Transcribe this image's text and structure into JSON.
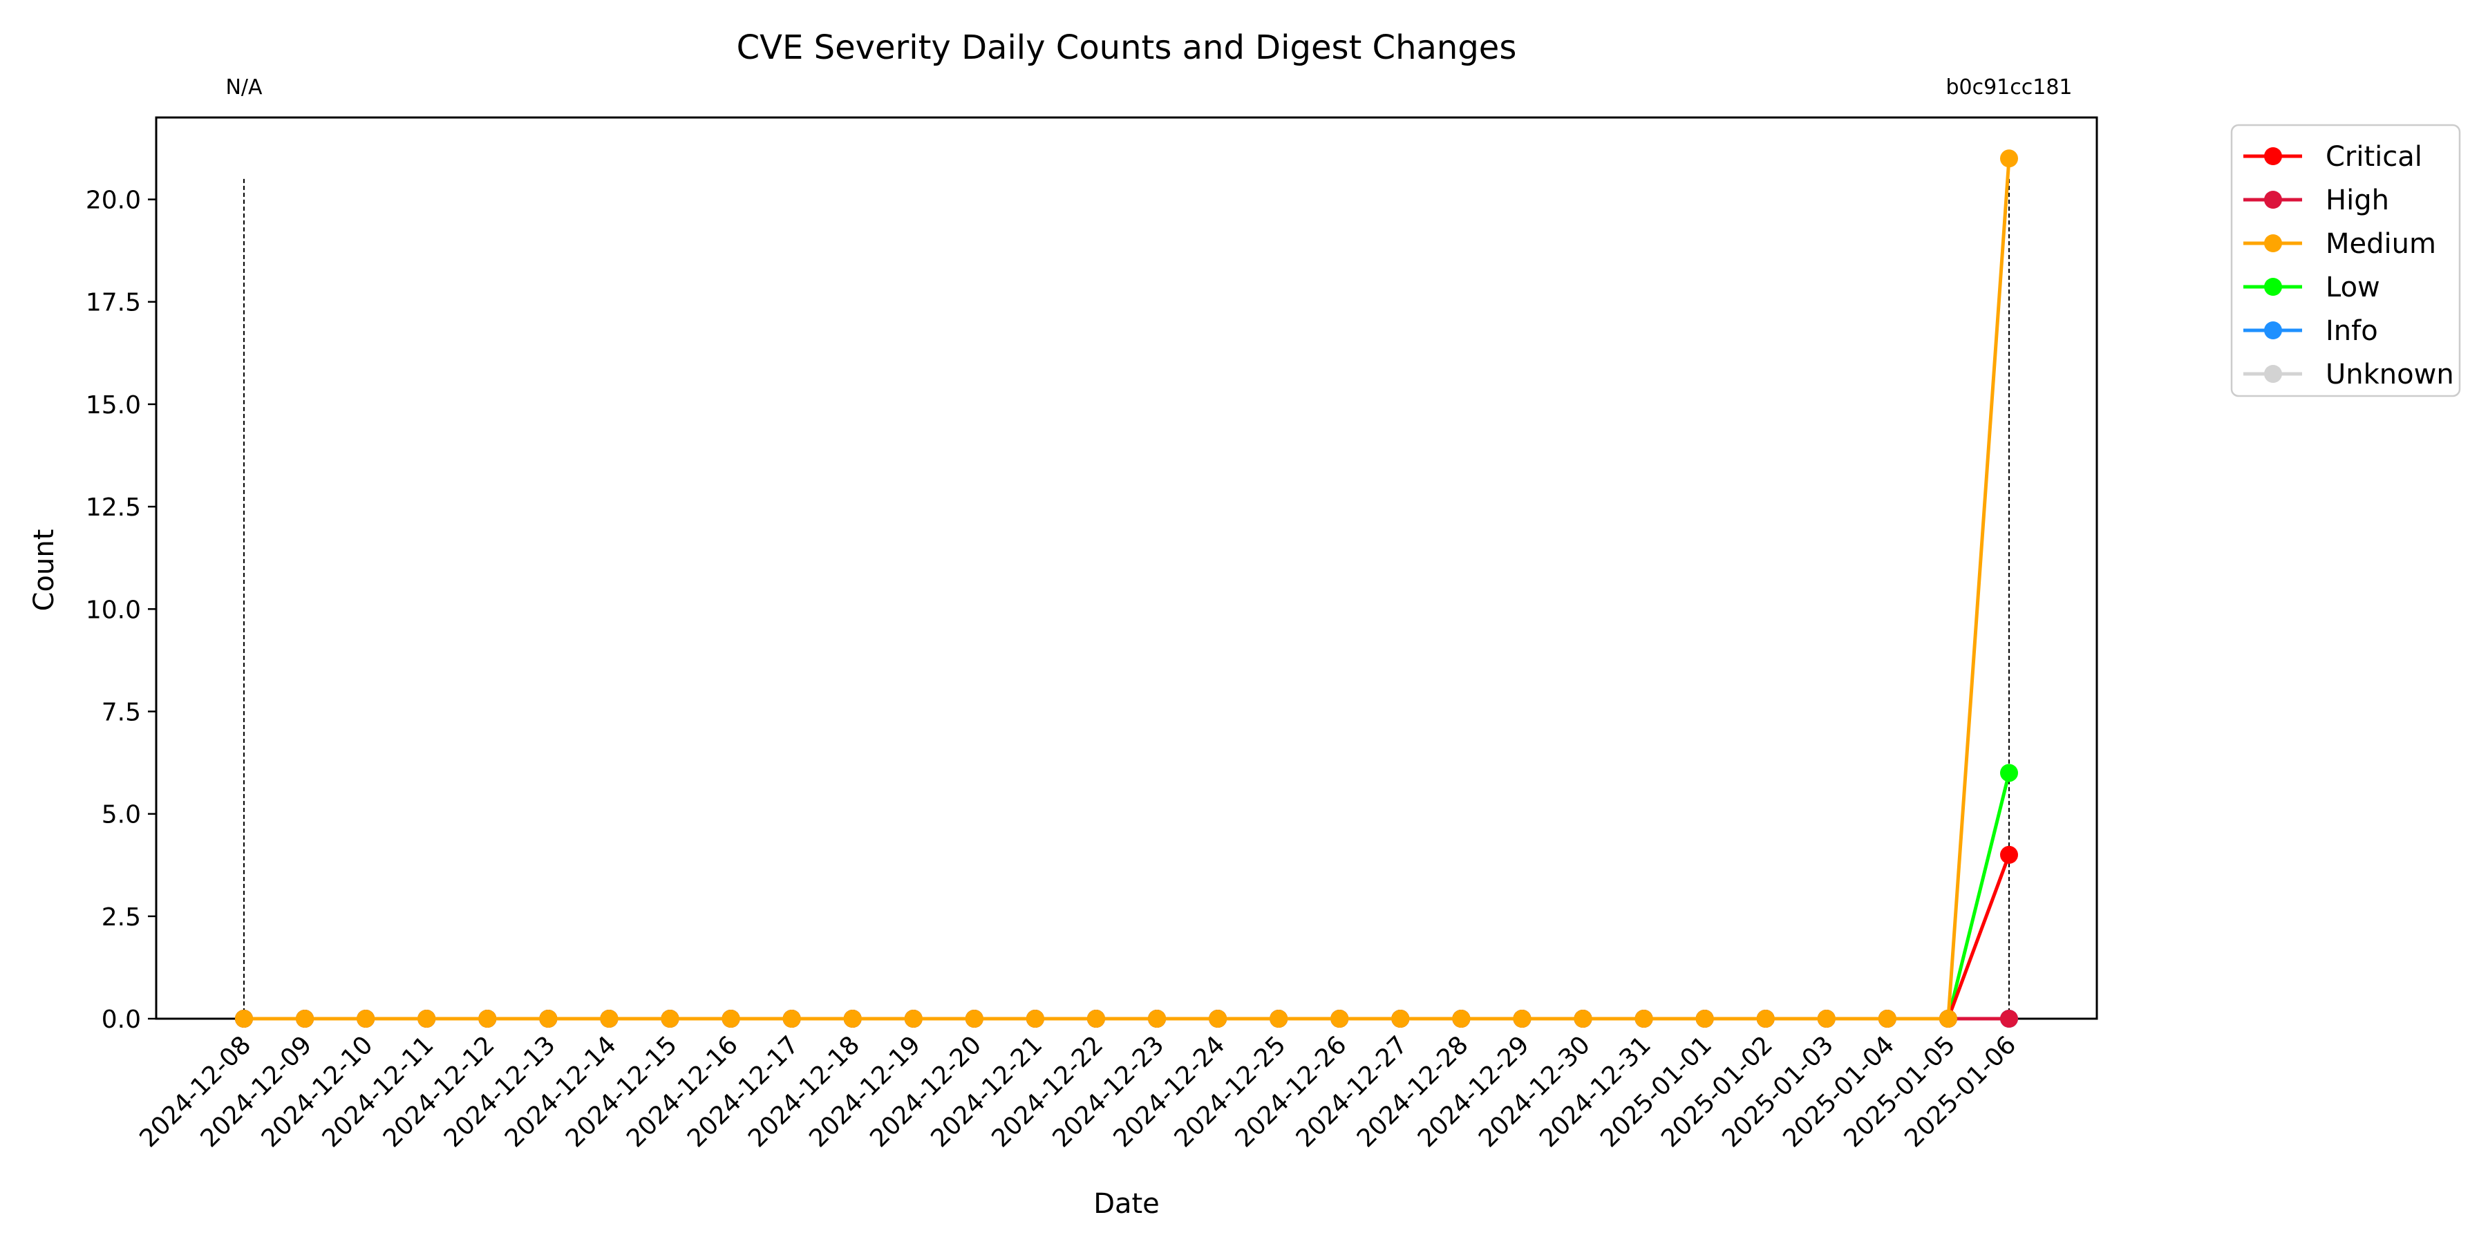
{
  "chart_data": {
    "type": "line",
    "title": "CVE Severity Daily Counts and Digest Changes",
    "xlabel": "Date",
    "ylabel": "Count",
    "x": [
      "2024-12-08",
      "2024-12-09",
      "2024-12-10",
      "2024-12-11",
      "2024-12-12",
      "2024-12-13",
      "2024-12-14",
      "2024-12-15",
      "2024-12-16",
      "2024-12-17",
      "2024-12-18",
      "2024-12-19",
      "2024-12-20",
      "2024-12-21",
      "2024-12-22",
      "2024-12-23",
      "2024-12-24",
      "2024-12-25",
      "2024-12-26",
      "2024-12-27",
      "2024-12-28",
      "2024-12-29",
      "2024-12-30",
      "2024-12-31",
      "2025-01-01",
      "2025-01-02",
      "2025-01-03",
      "2025-01-04",
      "2025-01-05",
      "2025-01-06"
    ],
    "ylim": [
      0,
      22
    ],
    "yticks": [
      "0.0",
      "2.5",
      "5.0",
      "7.5",
      "10.0",
      "12.5",
      "15.0",
      "17.5",
      "20.0"
    ],
    "grid": false,
    "legend_position": "outside-top-right",
    "series": [
      {
        "name": "Critical",
        "color": "#ff0000",
        "values": [
          0,
          0,
          0,
          0,
          0,
          0,
          0,
          0,
          0,
          0,
          0,
          0,
          0,
          0,
          0,
          0,
          0,
          0,
          0,
          0,
          0,
          0,
          0,
          0,
          0,
          0,
          0,
          0,
          0,
          4
        ]
      },
      {
        "name": "High",
        "color": "#dc143c",
        "values": [
          0,
          0,
          0,
          0,
          0,
          0,
          0,
          0,
          0,
          0,
          0,
          0,
          0,
          0,
          0,
          0,
          0,
          0,
          0,
          0,
          0,
          0,
          0,
          0,
          0,
          0,
          0,
          0,
          0,
          0
        ]
      },
      {
        "name": "Medium",
        "color": "#ffa500",
        "values": [
          0,
          0,
          0,
          0,
          0,
          0,
          0,
          0,
          0,
          0,
          0,
          0,
          0,
          0,
          0,
          0,
          0,
          0,
          0,
          0,
          0,
          0,
          0,
          0,
          0,
          0,
          0,
          0,
          0,
          21
        ]
      },
      {
        "name": "Low",
        "color": "#00ff00",
        "values": [
          0,
          0,
          0,
          0,
          0,
          0,
          0,
          0,
          0,
          0,
          0,
          0,
          0,
          0,
          0,
          0,
          0,
          0,
          0,
          0,
          0,
          0,
          0,
          0,
          0,
          0,
          0,
          0,
          0,
          6
        ]
      },
      {
        "name": "Info",
        "color": "#1e90ff",
        "values": [
          0,
          0,
          0,
          0,
          0,
          0,
          0,
          0,
          0,
          0,
          0,
          0,
          0,
          0,
          0,
          0,
          0,
          0,
          0,
          0,
          0,
          0,
          0,
          0,
          0,
          0,
          0,
          0,
          0,
          0
        ]
      },
      {
        "name": "Unknown",
        "color": "#d3d3d3",
        "values": [
          0,
          0,
          0,
          0,
          0,
          0,
          0,
          0,
          0,
          0,
          0,
          0,
          0,
          0,
          0,
          0,
          0,
          0,
          0,
          0,
          0,
          0,
          0,
          0,
          0,
          0,
          0,
          0,
          0,
          0
        ]
      }
    ],
    "annotations": [
      {
        "x": "2024-12-08",
        "label": "N/A"
      },
      {
        "x": "2025-01-06",
        "label": "b0c91cc181"
      }
    ]
  }
}
